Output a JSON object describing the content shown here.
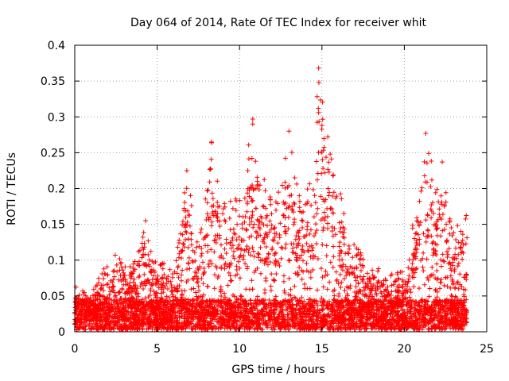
{
  "chart_data": {
    "type": "scatter",
    "title": "Day 064 of 2014, Rate Of TEC Index for receiver whit",
    "xlabel": "GPS time / hours",
    "ylabel": "ROTI / TECUs",
    "xlim": [
      0,
      25
    ],
    "ylim": [
      0,
      0.4
    ],
    "xticks": [
      0,
      5,
      10,
      15,
      20,
      25
    ],
    "xtick_labels": [
      "0",
      "5",
      "10",
      "15",
      "20",
      "25"
    ],
    "yticks": [
      0,
      0.05,
      0.1,
      0.15,
      0.2,
      0.25,
      0.3,
      0.35,
      0.4
    ],
    "ytick_labels": [
      "0",
      "0.05",
      "0.1",
      "0.15",
      "0.2",
      "0.25",
      "0.3",
      "0.35",
      "0.4"
    ],
    "grid": true,
    "marker": "+",
    "color": "#ff0000",
    "x_data_range": [
      0,
      23.8
    ],
    "envelope": [
      [
        0.0,
        0.065
      ],
      [
        1.0,
        0.05
      ],
      [
        1.5,
        0.08
      ],
      [
        2.5,
        0.11
      ],
      [
        3.5,
        0.09
      ],
      [
        4.3,
        0.155
      ],
      [
        5.0,
        0.09
      ],
      [
        5.5,
        0.11
      ],
      [
        6.0,
        0.08
      ],
      [
        6.8,
        0.225
      ],
      [
        7.5,
        0.12
      ],
      [
        8.0,
        0.2
      ],
      [
        8.3,
        0.265
      ],
      [
        9.0,
        0.18
      ],
      [
        9.5,
        0.2
      ],
      [
        10.2,
        0.21
      ],
      [
        10.8,
        0.297
      ],
      [
        11.2,
        0.22
      ],
      [
        12.0,
        0.2
      ],
      [
        12.5,
        0.22
      ],
      [
        13.0,
        0.28
      ],
      [
        13.5,
        0.21
      ],
      [
        14.0,
        0.2
      ],
      [
        14.5,
        0.25
      ],
      [
        14.8,
        0.368
      ],
      [
        15.5,
        0.25
      ],
      [
        16.0,
        0.22
      ],
      [
        16.5,
        0.14
      ],
      [
        17.0,
        0.12
      ],
      [
        18.0,
        0.1
      ],
      [
        19.0,
        0.08
      ],
      [
        20.0,
        0.085
      ],
      [
        20.5,
        0.15
      ],
      [
        21.0,
        0.2
      ],
      [
        21.3,
        0.277
      ],
      [
        22.0,
        0.2
      ],
      [
        22.3,
        0.237
      ],
      [
        23.0,
        0.14
      ],
      [
        23.8,
        0.17
      ]
    ],
    "notable_points": [
      {
        "x": 14.8,
        "y": 0.368
      },
      {
        "x": 14.8,
        "y": 0.306
      },
      {
        "x": 10.8,
        "y": 0.297
      },
      {
        "x": 10.8,
        "y": 0.29
      },
      {
        "x": 15.0,
        "y": 0.288
      },
      {
        "x": 13.0,
        "y": 0.28
      },
      {
        "x": 21.3,
        "y": 0.277
      },
      {
        "x": 8.3,
        "y": 0.265
      },
      {
        "x": 15.5,
        "y": 0.248
      },
      {
        "x": 22.3,
        "y": 0.237
      },
      {
        "x": 6.8,
        "y": 0.225
      },
      {
        "x": 4.3,
        "y": 0.155
      }
    ]
  }
}
